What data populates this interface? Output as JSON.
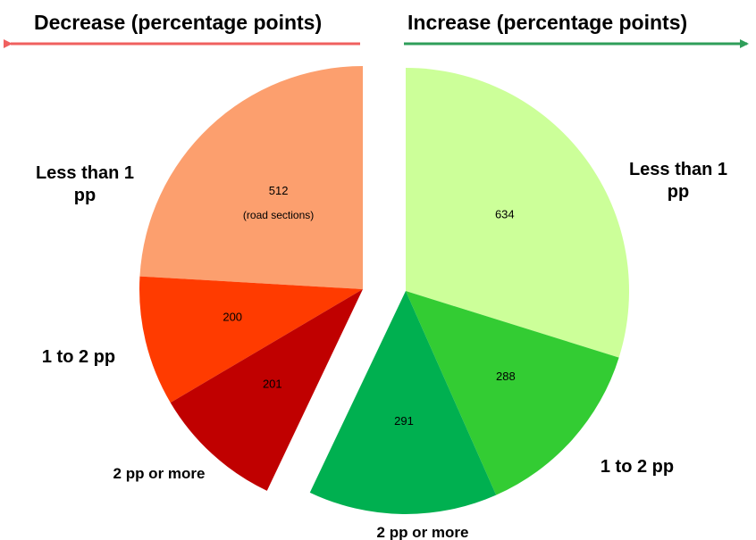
{
  "chart_data": {
    "type": "pie",
    "headers": {
      "decrease": "Decrease (percentage points)",
      "increase": "Increase (percentage points)"
    },
    "unit_note": "(road sections)",
    "colors": {
      "decrease_arrow": "#f0605f",
      "increase_arrow": "#2f9e5a"
    },
    "groups": [
      {
        "name": "Decrease",
        "slices": [
          {
            "label_lines": [
              "Less than 1",
              "pp"
            ],
            "value": 512,
            "color": "#fc9f6e"
          },
          {
            "label_lines": [
              "1 to 2 pp"
            ],
            "value": 200,
            "color": "#ff3b00"
          },
          {
            "label_lines": [
              "2 pp or more"
            ],
            "value": 201,
            "color": "#c00000"
          }
        ]
      },
      {
        "name": "Increase",
        "slices": [
          {
            "label_lines": [
              "Less than 1",
              "pp"
            ],
            "value": 634,
            "color": "#ccff99"
          },
          {
            "label_lines": [
              "1 to 2 pp"
            ],
            "value": 288,
            "color": "#33cc33"
          },
          {
            "label_lines": [
              "2 pp or more"
            ],
            "value": 291,
            "color": "#00b050"
          }
        ]
      }
    ]
  }
}
